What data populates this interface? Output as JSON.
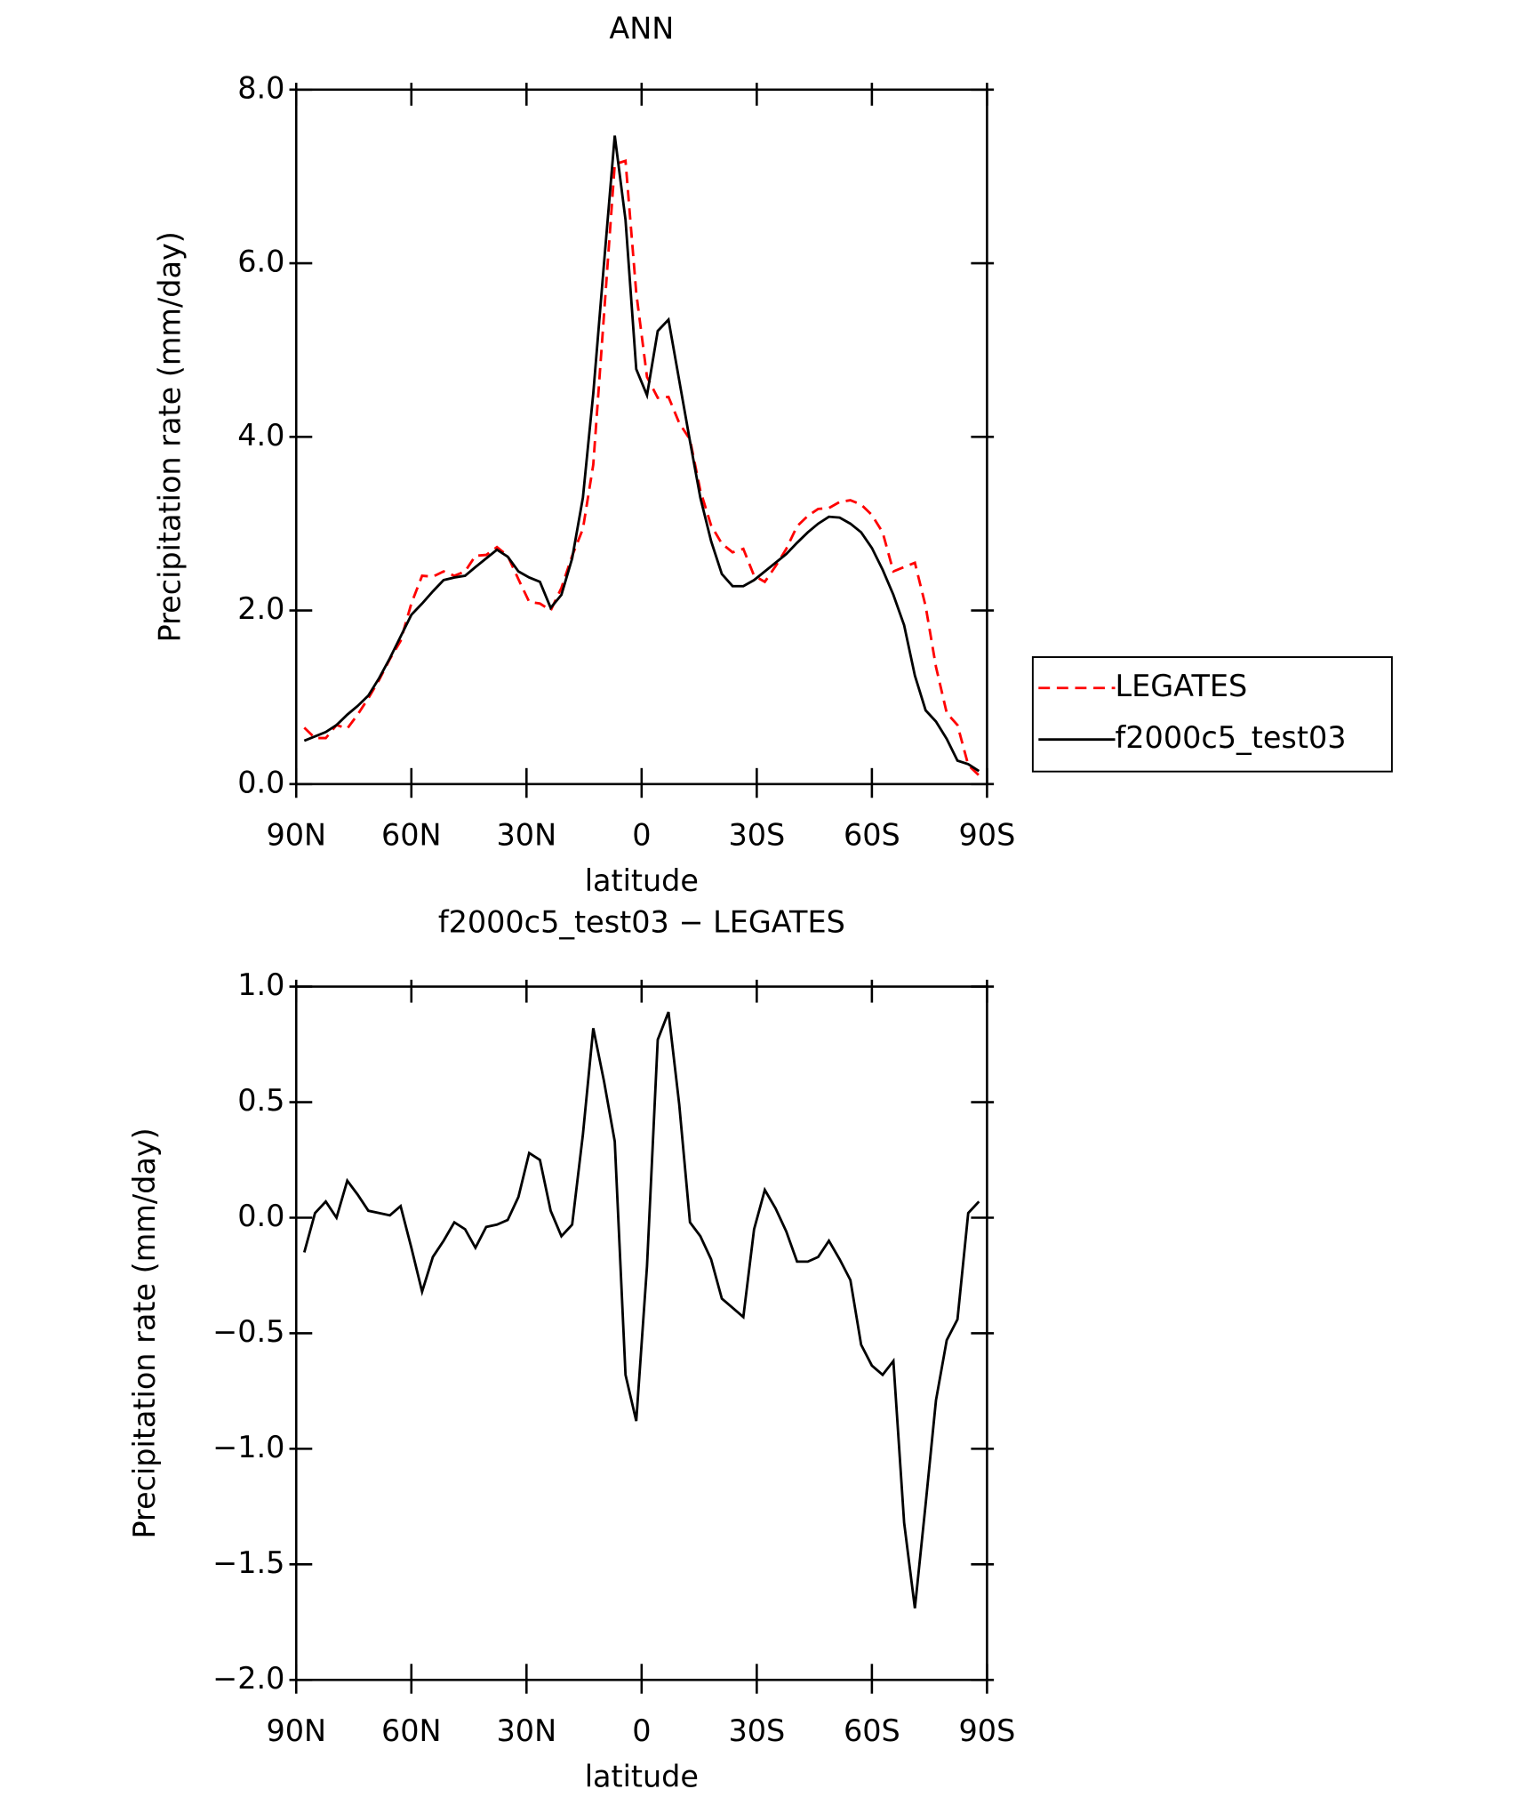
{
  "chart_data": [
    {
      "type": "line",
      "title": "ANN",
      "xlabel": "latitude",
      "ylabel": "Precipitation rate (mm/day)",
      "x": [
        87.9,
        85.1,
        82.3,
        79.5,
        76.7,
        74.0,
        71.2,
        68.4,
        65.6,
        62.8,
        60.0,
        57.2,
        54.4,
        51.6,
        48.8,
        46.0,
        43.3,
        40.5,
        37.7,
        34.9,
        32.1,
        29.3,
        26.5,
        23.7,
        20.9,
        18.1,
        15.3,
        12.6,
        9.8,
        7.0,
        4.2,
        1.4,
        -1.4,
        -4.2,
        -7.0,
        -9.8,
        -12.6,
        -15.3,
        -18.1,
        -20.9,
        -23.7,
        -26.5,
        -29.3,
        -32.1,
        -34.9,
        -37.7,
        -40.5,
        -43.3,
        -46.0,
        -48.8,
        -51.6,
        -54.4,
        -57.2,
        -60.0,
        -62.8,
        -65.6,
        -68.4,
        -71.2,
        -74.0,
        -76.7,
        -79.5,
        -82.3,
        -85.1,
        -87.9
      ],
      "series": [
        {
          "name": "LEGATES",
          "color": "#ff0000",
          "dash": true,
          "values": [
            0.65,
            0.53,
            0.53,
            0.68,
            0.64,
            0.8,
            0.99,
            1.2,
            1.44,
            1.65,
            2.08,
            2.4,
            2.39,
            2.45,
            2.4,
            2.45,
            2.63,
            2.64,
            2.73,
            2.63,
            2.36,
            2.1,
            2.08,
            2.0,
            2.26,
            2.63,
            2.94,
            3.68,
            5.41,
            7.14,
            7.18,
            5.66,
            4.69,
            4.45,
            4.46,
            4.16,
            3.97,
            3.38,
            2.98,
            2.77,
            2.67,
            2.71,
            2.4,
            2.33,
            2.51,
            2.71,
            2.97,
            3.09,
            3.17,
            3.18,
            3.25,
            3.27,
            3.22,
            3.1,
            2.9,
            2.45,
            2.5,
            2.55,
            2.05,
            1.35,
            0.82,
            0.68,
            0.22,
            0.1
          ]
        },
        {
          "name": "f2000c5_test03",
          "color": "#000000",
          "dash": false,
          "values": [
            0.5,
            0.55,
            0.6,
            0.68,
            0.8,
            0.9,
            1.02,
            1.22,
            1.45,
            1.7,
            1.95,
            2.08,
            2.22,
            2.35,
            2.38,
            2.4,
            2.5,
            2.6,
            2.7,
            2.62,
            2.45,
            2.38,
            2.33,
            2.03,
            2.18,
            2.6,
            3.3,
            4.5,
            6.0,
            7.47,
            6.5,
            4.78,
            4.48,
            5.22,
            5.35,
            4.65,
            3.95,
            3.3,
            2.8,
            2.42,
            2.28,
            2.28,
            2.35,
            2.45,
            2.55,
            2.65,
            2.78,
            2.9,
            3.0,
            3.08,
            3.07,
            3.0,
            2.9,
            2.72,
            2.47,
            2.18,
            1.83,
            1.25,
            0.85,
            0.72,
            0.52,
            0.27,
            0.23,
            0.15
          ]
        }
      ],
      "xlim": [
        90,
        -90
      ],
      "xticks": [
        {
          "value": 90,
          "label": "90N"
        },
        {
          "value": 60,
          "label": "60N"
        },
        {
          "value": 30,
          "label": "30N"
        },
        0,
        {
          "value": -30,
          "label": "30S"
        },
        {
          "value": -60,
          "label": "60S"
        },
        {
          "value": -90,
          "label": "90S"
        }
      ],
      "ylim": [
        0,
        8
      ],
      "yticks": [
        {
          "value": 0,
          "label": "0.0"
        },
        {
          "value": 2,
          "label": "2.0"
        },
        {
          "value": 4,
          "label": "4.0"
        },
        {
          "value": 6,
          "label": "6.0"
        },
        {
          "value": 8,
          "label": "8.0"
        }
      ],
      "legend": "right"
    },
    {
      "type": "line",
      "title": "f2000c5_test03 − LEGATES",
      "xlabel": "latitude",
      "ylabel": "Precipitation rate (mm/day)",
      "x": [
        87.9,
        85.1,
        82.3,
        79.5,
        76.7,
        74.0,
        71.2,
        68.4,
        65.6,
        62.8,
        60.0,
        57.2,
        54.4,
        51.6,
        48.8,
        46.0,
        43.3,
        40.5,
        37.7,
        34.9,
        32.1,
        29.3,
        26.5,
        23.7,
        20.9,
        18.1,
        15.3,
        12.6,
        9.8,
        7.0,
        4.2,
        1.4,
        -1.4,
        -4.2,
        -7.0,
        -9.8,
        -12.6,
        -15.3,
        -18.1,
        -20.9,
        -23.7,
        -26.5,
        -29.3,
        -32.1,
        -34.9,
        -37.7,
        -40.5,
        -43.3,
        -46.0,
        -48.8,
        -51.6,
        -54.4,
        -57.2,
        -60.0,
        -62.8,
        -65.6,
        -68.4,
        -71.2,
        -74.0,
        -76.7,
        -79.5,
        -82.3,
        -85.1,
        -87.9
      ],
      "color": "#000000",
      "values": [
        -0.15,
        0.02,
        0.07,
        0.0,
        0.16,
        0.1,
        0.03,
        0.02,
        0.01,
        0.05,
        -0.13,
        -0.32,
        -0.17,
        -0.1,
        -0.02,
        -0.05,
        -0.13,
        -0.04,
        -0.03,
        -0.01,
        0.09,
        0.28,
        0.25,
        0.03,
        -0.08,
        -0.03,
        0.36,
        0.82,
        0.59,
        0.33,
        -0.68,
        -0.88,
        -0.21,
        0.77,
        0.89,
        0.49,
        -0.02,
        -0.08,
        -0.18,
        -0.35,
        -0.39,
        -0.43,
        -0.05,
        0.12,
        0.04,
        -0.06,
        -0.19,
        -0.19,
        -0.17,
        -0.1,
        -0.18,
        -0.27,
        -0.55,
        -0.64,
        -0.68,
        -0.62,
        -1.32,
        -1.69,
        -1.24,
        -0.79,
        -0.53,
        -0.44,
        0.02,
        0.07
      ],
      "xlim": [
        90,
        -90
      ],
      "xticks": [
        {
          "value": 90,
          "label": "90N"
        },
        {
          "value": 60,
          "label": "60N"
        },
        {
          "value": 30,
          "label": "30N"
        },
        0,
        {
          "value": -30,
          "label": "30S"
        },
        {
          "value": -60,
          "label": "60S"
        },
        {
          "value": -90,
          "label": "90S"
        }
      ],
      "ylim": [
        -2,
        1
      ],
      "yticks": [
        {
          "value": -2,
          "label": "−2.0"
        },
        {
          "value": -1.5,
          "label": "−1.5"
        },
        {
          "value": -1,
          "label": "−1.0"
        },
        {
          "value": -0.5,
          "label": "−0.5"
        },
        {
          "value": 0,
          "label": "0.0"
        },
        {
          "value": 0.5,
          "label": "0.5"
        },
        {
          "value": 1,
          "label": "1.0"
        }
      ]
    }
  ]
}
